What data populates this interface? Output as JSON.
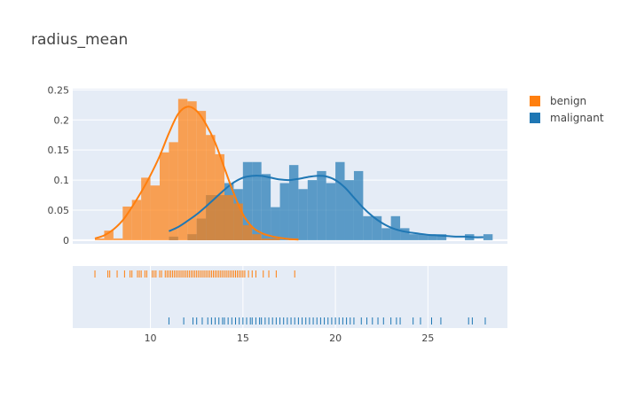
{
  "chart_data": {
    "type": "histogram",
    "title": "radius_mean",
    "legend": {
      "placement": "top-right",
      "entries": [
        "benign",
        "malignant"
      ]
    },
    "histogram": {
      "bin_width": 0.5,
      "xlim": [
        5.8,
        29.3
      ],
      "ylim": [
        -0.006,
        0.252
      ],
      "y_ticks": [
        0,
        0.05,
        0.1,
        0.15,
        0.2,
        0.25
      ],
      "y_tick_labels": [
        "0",
        "0.05",
        "0.1",
        "0.15",
        "0.2",
        "0.25"
      ],
      "grid": true,
      "series": [
        {
          "name": "benign",
          "color": "#ff7f0e",
          "bins": [
            [
              7,
              0.003
            ],
            [
              7.5,
              0.016
            ],
            [
              8,
              0.003
            ],
            [
              8.5,
              0.056
            ],
            [
              9,
              0.067
            ],
            [
              9.5,
              0.104
            ],
            [
              10,
              0.091
            ],
            [
              10.5,
              0.146
            ],
            [
              11,
              0.163
            ],
            [
              11.5,
              0.235
            ],
            [
              12,
              0.231
            ],
            [
              12.5,
              0.215
            ],
            [
              13,
              0.175
            ],
            [
              13.5,
              0.143
            ],
            [
              14,
              0.075
            ],
            [
              14.5,
              0.061
            ],
            [
              15,
              0.025
            ],
            [
              15.5,
              0.01
            ],
            [
              16,
              0.003
            ],
            [
              16.5,
              0.003
            ],
            [
              17.5,
              0.003
            ]
          ],
          "kde": [
            [
              7,
              0.003
            ],
            [
              7.5,
              0.008
            ],
            [
              8,
              0.018
            ],
            [
              8.5,
              0.033
            ],
            [
              9,
              0.055
            ],
            [
              9.5,
              0.08
            ],
            [
              10,
              0.108
            ],
            [
              10.5,
              0.14
            ],
            [
              11,
              0.178
            ],
            [
              11.5,
              0.21
            ],
            [
              12,
              0.222
            ],
            [
              12.5,
              0.215
            ],
            [
              13,
              0.193
            ],
            [
              13.5,
              0.162
            ],
            [
              14,
              0.12
            ],
            [
              14.5,
              0.078
            ],
            [
              15,
              0.043
            ],
            [
              15.5,
              0.022
            ],
            [
              16,
              0.012
            ],
            [
              16.5,
              0.007
            ],
            [
              17,
              0.004
            ],
            [
              17.5,
              0.002
            ],
            [
              18,
              0.001
            ]
          ],
          "rug": [
            7,
            7.7,
            7.8,
            8.2,
            8.6,
            8.9,
            9,
            9.3,
            9.4,
            9.5,
            9.7,
            9.8,
            10.1,
            10.2,
            10.3,
            10.5,
            10.6,
            10.8,
            10.9,
            11,
            11.1,
            11.2,
            11.3,
            11.4,
            11.5,
            11.6,
            11.7,
            11.8,
            11.9,
            12,
            12.1,
            12.2,
            12.3,
            12.4,
            12.5,
            12.6,
            12.7,
            12.8,
            12.9,
            13,
            13.1,
            13.2,
            13.3,
            13.4,
            13.5,
            13.6,
            13.7,
            13.8,
            13.9,
            14,
            14.1,
            14.2,
            14.3,
            14.4,
            14.5,
            14.6,
            14.7,
            14.8,
            14.9,
            15,
            15.1,
            15.3,
            15.5,
            15.7,
            16.1,
            16.4,
            16.8,
            17.8
          ]
        },
        {
          "name": "malignant",
          "color": "#1f77b4",
          "bins": [
            [
              11,
              0.006
            ],
            [
              12,
              0.01
            ],
            [
              12.5,
              0.036
            ],
            [
              13,
              0.075
            ],
            [
              13.5,
              0.075
            ],
            [
              14,
              0.095
            ],
            [
              14.5,
              0.085
            ],
            [
              15,
              0.13
            ],
            [
              15.5,
              0.13
            ],
            [
              16,
              0.11
            ],
            [
              16.5,
              0.055
            ],
            [
              17,
              0.095
            ],
            [
              17.5,
              0.125
            ],
            [
              18,
              0.085
            ],
            [
              18.5,
              0.1
            ],
            [
              19,
              0.115
            ],
            [
              19.5,
              0.095
            ],
            [
              20,
              0.13
            ],
            [
              20.5,
              0.1
            ],
            [
              21,
              0.115
            ],
            [
              21.5,
              0.04
            ],
            [
              22,
              0.04
            ],
            [
              22.5,
              0.02
            ],
            [
              23,
              0.04
            ],
            [
              23.5,
              0.02
            ],
            [
              24,
              0.01
            ],
            [
              24.5,
              0.01
            ],
            [
              25,
              0.01
            ],
            [
              25.5,
              0.01
            ],
            [
              27,
              0.01
            ],
            [
              28,
              0.01
            ]
          ],
          "kde": [
            [
              11,
              0.015
            ],
            [
              11.5,
              0.022
            ],
            [
              12,
              0.032
            ],
            [
              12.5,
              0.043
            ],
            [
              13,
              0.056
            ],
            [
              13.5,
              0.07
            ],
            [
              14,
              0.084
            ],
            [
              14.5,
              0.096
            ],
            [
              15,
              0.104
            ],
            [
              15.5,
              0.107
            ],
            [
              16,
              0.107
            ],
            [
              16.5,
              0.104
            ],
            [
              17,
              0.101
            ],
            [
              17.5,
              0.1
            ],
            [
              18,
              0.102
            ],
            [
              18.5,
              0.105
            ],
            [
              19,
              0.107
            ],
            [
              19.5,
              0.106
            ],
            [
              20,
              0.1
            ],
            [
              20.5,
              0.088
            ],
            [
              21,
              0.071
            ],
            [
              21.5,
              0.054
            ],
            [
              22,
              0.04
            ],
            [
              22.5,
              0.029
            ],
            [
              23,
              0.021
            ],
            [
              23.5,
              0.016
            ],
            [
              24,
              0.013
            ],
            [
              24.5,
              0.011
            ],
            [
              25,
              0.009
            ],
            [
              25.5,
              0.008
            ],
            [
              26,
              0.007
            ],
            [
              26.5,
              0.006
            ],
            [
              27,
              0.006
            ],
            [
              27.5,
              0.005
            ],
            [
              28,
              0.005
            ]
          ],
          "rug": [
            11,
            11.8,
            12.3,
            12.5,
            12.8,
            13.1,
            13.3,
            13.5,
            13.7,
            13.9,
            14,
            14.2,
            14.4,
            14.6,
            14.8,
            15,
            15.2,
            15.4,
            15.5,
            15.7,
            15.9,
            16,
            16.2,
            16.4,
            16.6,
            16.8,
            17,
            17.2,
            17.4,
            17.6,
            17.8,
            18,
            18.2,
            18.4,
            18.6,
            18.8,
            19,
            19.2,
            19.4,
            19.6,
            19.8,
            20,
            20.2,
            20.4,
            20.6,
            20.8,
            21,
            21.4,
            21.7,
            22,
            22.3,
            22.6,
            23,
            23.3,
            23.5,
            24.2,
            24.6,
            25.2,
            25.7,
            27.2,
            27.4,
            28.1
          ]
        }
      ]
    },
    "rug": {
      "x_ticks": [
        10,
        15,
        20,
        25
      ],
      "x_tick_labels": [
        "10",
        "15",
        "20",
        "25"
      ]
    }
  }
}
